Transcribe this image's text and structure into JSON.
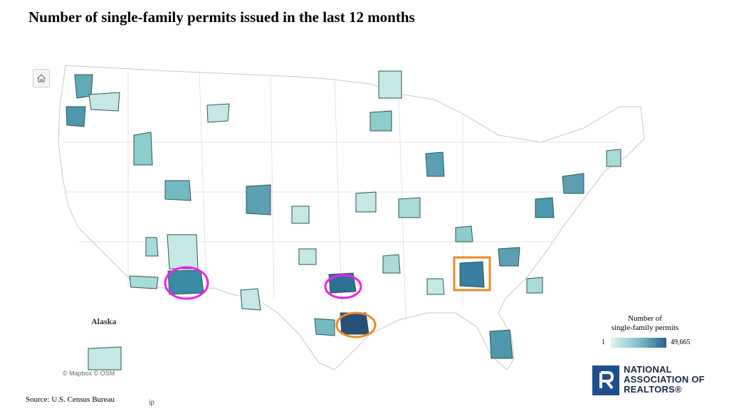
{
  "title": "Number of single-family permits issued in the last 12 months",
  "map": {
    "alaska_label": "Alaska",
    "attribution": "© Mapbox  © OSM",
    "home_icon": "home-icon",
    "highlight_colors": {
      "magenta": "#ee22ee",
      "orange": "#f08a24"
    }
  },
  "legend": {
    "title_line1": "Number of",
    "title_line2": "single-family permits",
    "min": "1",
    "max": "49,665",
    "color_low": "#e2f3f1",
    "color_high": "#2a5f8f"
  },
  "source": "Source: U.S. Census Bureau",
  "crop_fragment": "ip",
  "logo": {
    "line1": "NATIONAL",
    "line2": "ASSOCIATION OF",
    "line3": "REALTORS®",
    "brand_color": "#1f4e8c"
  }
}
